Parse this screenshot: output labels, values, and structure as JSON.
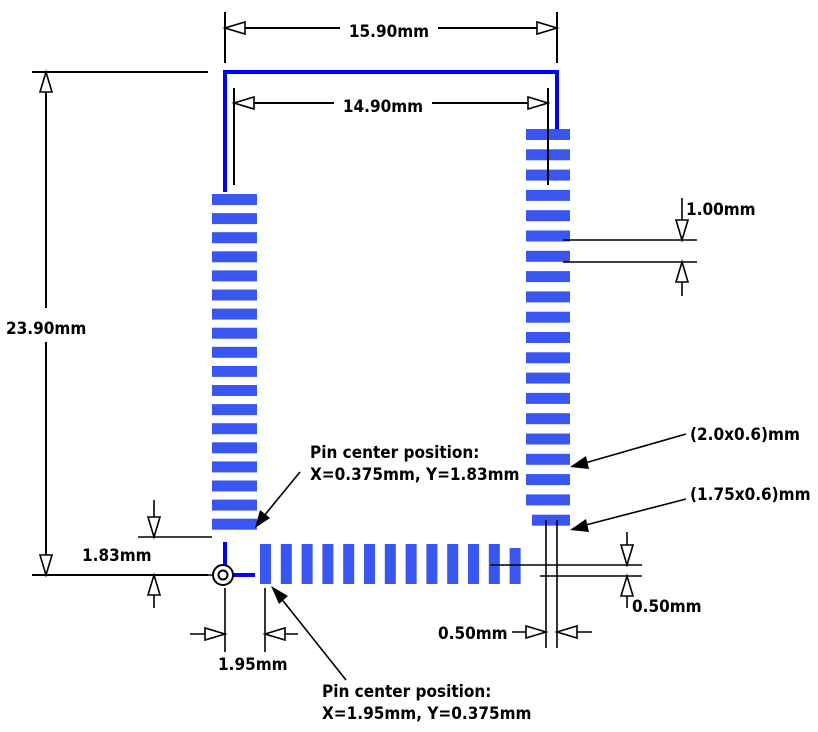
{
  "colors": {
    "outline": "#0000ff",
    "pad": "#3a56f0",
    "line": "#000000",
    "background": "#ffffff"
  },
  "dimensions": {
    "outer_width": "15.90mm",
    "inner_width": "14.90mm",
    "height": "23.90mm",
    "pad_pitch": "1.00mm",
    "pad_size_large": "(2.0x0.6)mm",
    "pad_size_corner": "(1.75x0.6)mm",
    "left_offset": "1.83mm",
    "bottom_offset": "0.50mm",
    "right_offset": "0.50mm",
    "bottom_pin_offset": "1.95mm"
  },
  "callouts": {
    "first_pin": {
      "title": "Pin center position:",
      "coords": "X=0.375mm, Y=1.83mm"
    },
    "bottom_pin": {
      "title": "Pin center position:",
      "coords": "X=1.95mm, Y=0.375mm"
    }
  },
  "pads": {
    "left_count": 18,
    "right_count": 20,
    "bottom_count": 13
  },
  "icons": {
    "origin_marker": "origin-target-icon"
  }
}
